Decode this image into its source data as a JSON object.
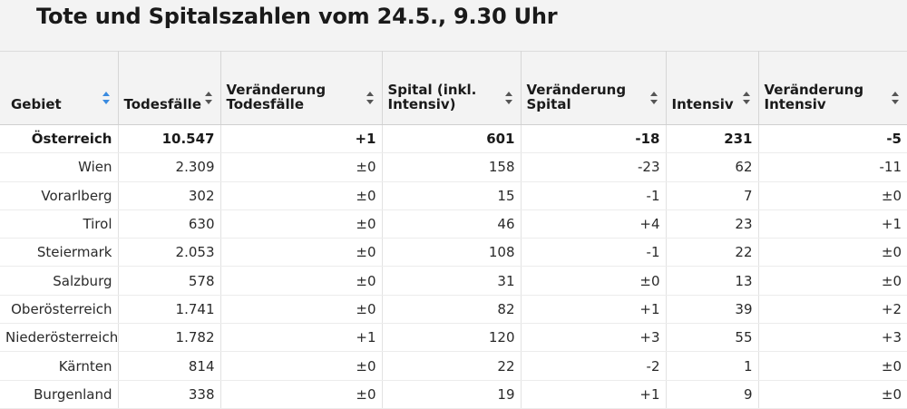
{
  "title": "Tote und Spitalszahlen vom 24.5., 9.30 Uhr",
  "columns": [
    {
      "label": "Gebiet"
    },
    {
      "label": "Todesfälle"
    },
    {
      "label": "Veränderung Todesfälle"
    },
    {
      "label": "Spital (inkl. Intensiv)"
    },
    {
      "label": "Veränderung Spital"
    },
    {
      "label": "Intensiv"
    },
    {
      "label": "Veränderung Intensiv"
    }
  ],
  "active_sort_color": "#3a8be0",
  "rows": [
    {
      "gebiet": "Österreich",
      "todesfaelle": "10.547",
      "ver_todesfaelle": "+1",
      "spital": "601",
      "ver_spital": "-18",
      "intensiv": "231",
      "ver_intensiv": "-5"
    },
    {
      "gebiet": "Wien",
      "todesfaelle": "2.309",
      "ver_todesfaelle": "±0",
      "spital": "158",
      "ver_spital": "-23",
      "intensiv": "62",
      "ver_intensiv": "-11"
    },
    {
      "gebiet": "Vorarlberg",
      "todesfaelle": "302",
      "ver_todesfaelle": "±0",
      "spital": "15",
      "ver_spital": "-1",
      "intensiv": "7",
      "ver_intensiv": "±0"
    },
    {
      "gebiet": "Tirol",
      "todesfaelle": "630",
      "ver_todesfaelle": "±0",
      "spital": "46",
      "ver_spital": "+4",
      "intensiv": "23",
      "ver_intensiv": "+1"
    },
    {
      "gebiet": "Steiermark",
      "todesfaelle": "2.053",
      "ver_todesfaelle": "±0",
      "spital": "108",
      "ver_spital": "-1",
      "intensiv": "22",
      "ver_intensiv": "±0"
    },
    {
      "gebiet": "Salzburg",
      "todesfaelle": "578",
      "ver_todesfaelle": "±0",
      "spital": "31",
      "ver_spital": "±0",
      "intensiv": "13",
      "ver_intensiv": "±0"
    },
    {
      "gebiet": "Oberösterreich",
      "todesfaelle": "1.741",
      "ver_todesfaelle": "±0",
      "spital": "82",
      "ver_spital": "+1",
      "intensiv": "39",
      "ver_intensiv": "+2"
    },
    {
      "gebiet": "Niederösterreich",
      "todesfaelle": "1.782",
      "ver_todesfaelle": "+1",
      "spital": "120",
      "ver_spital": "+3",
      "intensiv": "55",
      "ver_intensiv": "+3"
    },
    {
      "gebiet": "Kärnten",
      "todesfaelle": "814",
      "ver_todesfaelle": "±0",
      "spital": "22",
      "ver_spital": "-2",
      "intensiv": "1",
      "ver_intensiv": "±0"
    },
    {
      "gebiet": "Burgenland",
      "todesfaelle": "338",
      "ver_todesfaelle": "±0",
      "spital": "19",
      "ver_spital": "+1",
      "intensiv": "9",
      "ver_intensiv": "±0"
    }
  ]
}
